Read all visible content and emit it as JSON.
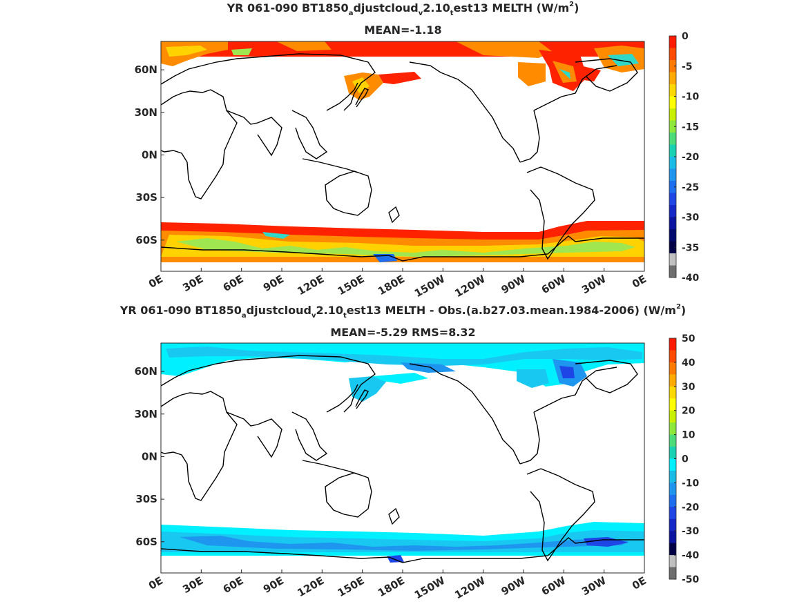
{
  "panel_top": {
    "title_parts": [
      "YR 061-090 BT1850",
      "a",
      "djustcloud",
      "v",
      "2.10",
      "t",
      "est13  MELTH (W/m",
      "2",
      ")"
    ],
    "subtitle": "MEAN=-1.18",
    "colorbar_labels": [
      "0",
      "-5",
      "-10",
      "-15",
      "-20",
      "-25",
      "-30",
      "-35",
      "-40"
    ],
    "colorbar_colors": [
      "#ff1a00",
      "#ff4a00",
      "#ff7a00",
      "#ffaa00",
      "#ffd800",
      "#ffff00",
      "#c8f000",
      "#8ee83c",
      "#4cdc7a",
      "#19d2b4",
      "#19bce6",
      "#1e96f0",
      "#1e6ef0",
      "#1e46e6",
      "#1428c8",
      "#0a14a0",
      "#000a6e",
      "#000046",
      "#c0c0c0",
      "#6e6e6e"
    ]
  },
  "panel_bottom": {
    "title_parts": [
      "YR 061-090 BT1850",
      "a",
      "djustcloud",
      "v",
      "2.10",
      "t",
      "est13 MELTH - Obs.(a.b27.03.mean.1984-2006) (W/m",
      "2",
      ")"
    ],
    "subtitle": "MEAN=-5.29 RMS=8.32",
    "colorbar_labels": [
      "50",
      "40",
      "30",
      "20",
      "10",
      "0",
      "-10",
      "-20",
      "-30",
      "-40",
      "-50"
    ],
    "colorbar_colors": [
      "#ff1a00",
      "#ff4a00",
      "#ff7a00",
      "#ffaa00",
      "#ffd800",
      "#ffff00",
      "#c8f000",
      "#8ee83c",
      "#4cdc7a",
      "#19d2b4",
      "#00f0ff",
      "#19bce6",
      "#1e96f0",
      "#1e6ef0",
      "#1e46e6",
      "#1428c8",
      "#0a14a0",
      "#000046",
      "#c0c0c0",
      "#6e6e6e"
    ]
  },
  "axes": {
    "lat_labels": [
      "60N",
      "30N",
      "0N",
      "30S",
      "60S"
    ],
    "lon_labels": [
      "0E",
      "30E",
      "60E",
      "90E",
      "120E",
      "150E",
      "180E",
      "150W",
      "120W",
      "90W",
      "60W",
      "30W",
      "0E"
    ]
  },
  "colors": {
    "melt_red": "#ff2200",
    "melt_orange": "#ff8c00",
    "melt_yellow": "#ffd200",
    "melt_green": "#a0e650",
    "melt_cyan": "#30d8c8",
    "melt_blue": "#1e6ef0",
    "diff_cyan": "#00f0ff",
    "diff_light": "#19c8f0",
    "diff_mid": "#1e96f0",
    "diff_dark": "#1e46e6",
    "coast": "#000000"
  }
}
